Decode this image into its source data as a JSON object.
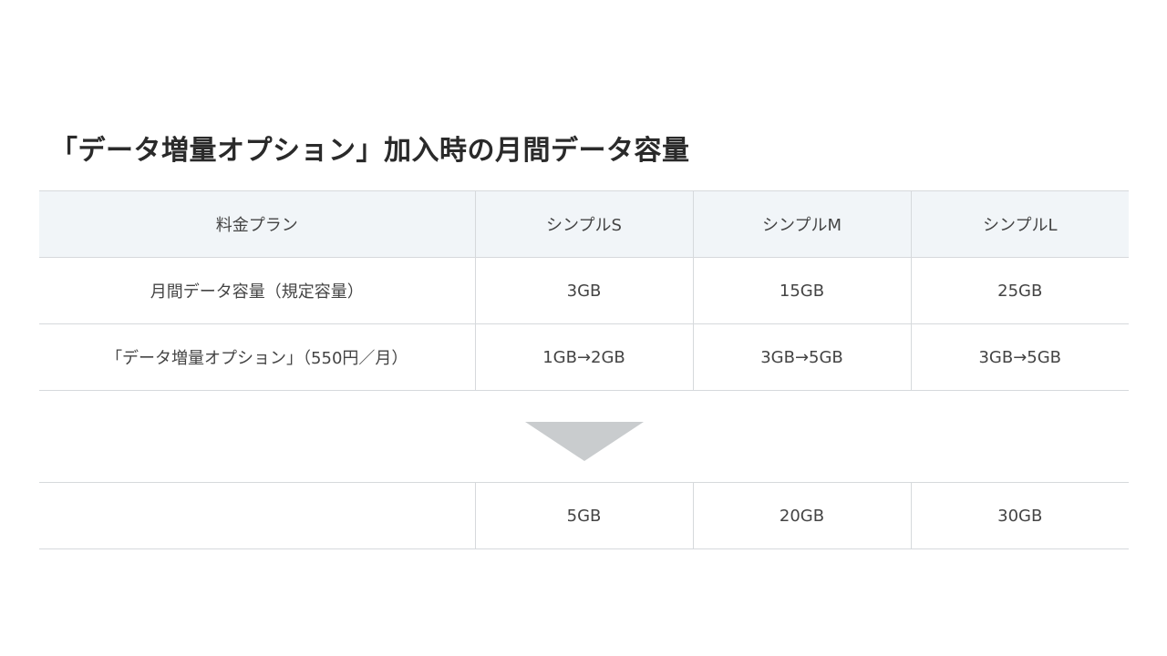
{
  "title": "「データ増量オプション」加入時の月間データ容量",
  "table": {
    "header": [
      "料金プラン",
      "シンプルS",
      "シンプルM",
      "シンプルL"
    ],
    "rows": [
      [
        "月間データ容量（規定容量）",
        "3GB",
        "15GB",
        "25GB"
      ],
      [
        "「データ増量オプション」（550円／月）",
        "1GB→2GB",
        "3GB→5GB",
        "3GB→5GB"
      ]
    ]
  },
  "result": [
    "",
    "5GB",
    "20GB",
    "30GB"
  ],
  "colors": {
    "header_bg": "#f1f5f8",
    "arrow": "#c9ccce",
    "border": "#d6d9dc"
  }
}
